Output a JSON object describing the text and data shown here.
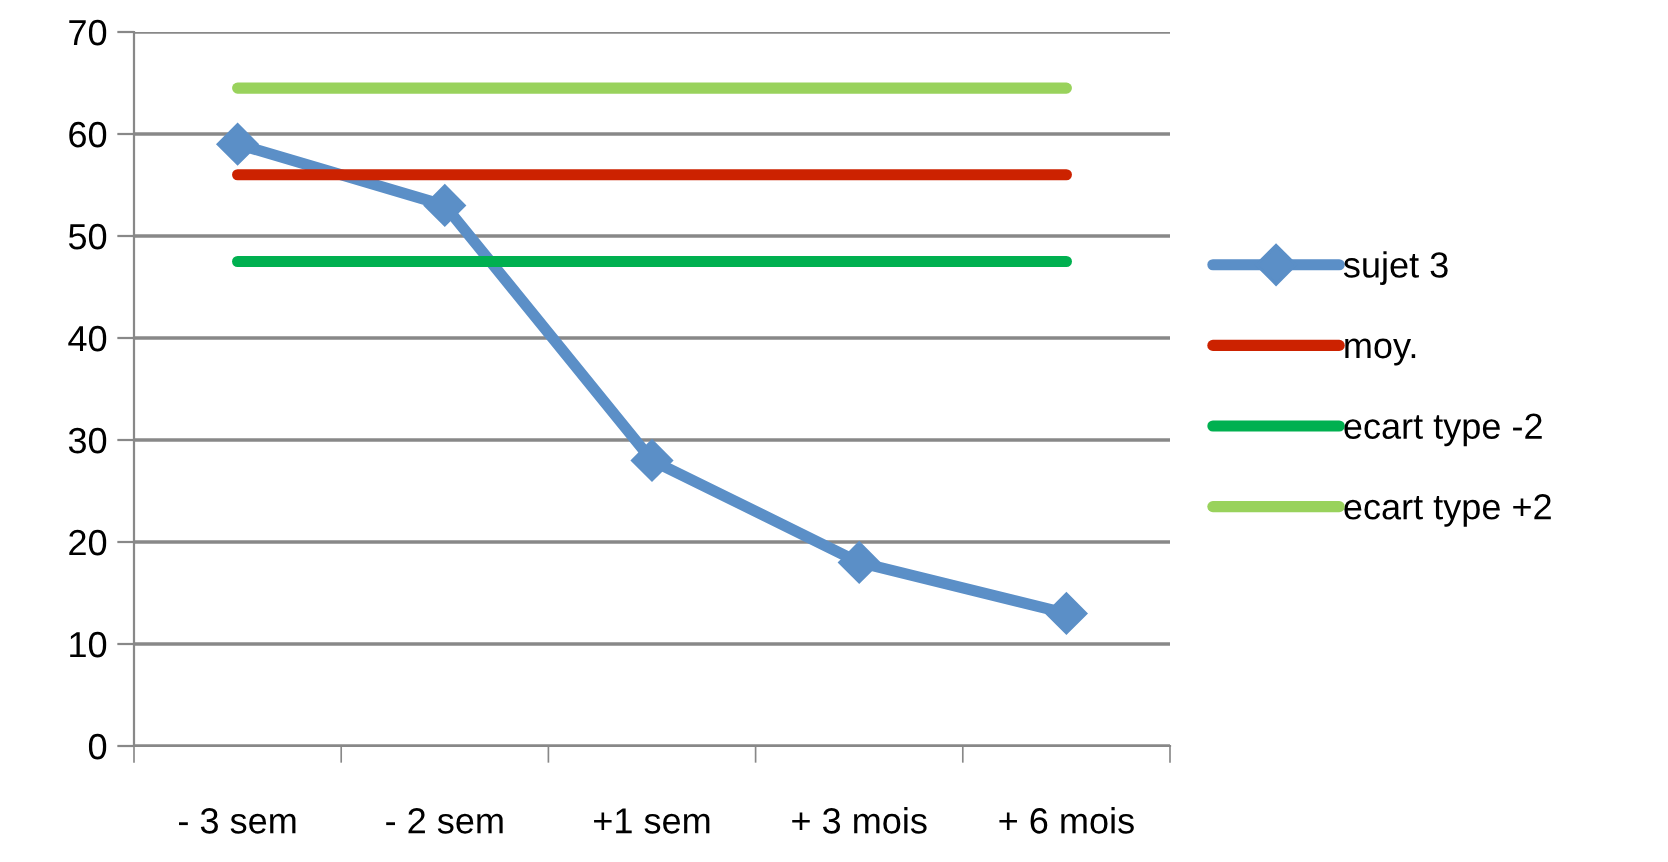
{
  "chart_data": {
    "type": "line",
    "categories": [
      "- 3 sem",
      "- 2 sem",
      "+1 sem",
      "+ 3 mois",
      "+ 6 mois"
    ],
    "series": [
      {
        "name": "sujet 3",
        "color": "#5b8fc7",
        "marker": "diamond",
        "values": [
          59,
          53,
          28,
          18,
          13
        ]
      },
      {
        "name": "moy.",
        "color": "#cc2200",
        "marker": "none",
        "values": [
          56,
          56,
          56,
          56,
          56
        ]
      },
      {
        "name": "ecart type -2",
        "color": "#00b050",
        "marker": "none",
        "values": [
          47.5,
          47.5,
          47.5,
          47.5,
          47.5
        ]
      },
      {
        "name": "ecart type +2",
        "color": "#99d25c",
        "marker": "none",
        "values": [
          64.5,
          64.5,
          64.5,
          64.5,
          64.5
        ]
      }
    ],
    "ylim": [
      0,
      70
    ],
    "yticks": [
      0,
      10,
      20,
      30,
      40,
      50,
      60,
      70
    ],
    "grid": "y",
    "legend": "right",
    "line_style": "solid"
  }
}
